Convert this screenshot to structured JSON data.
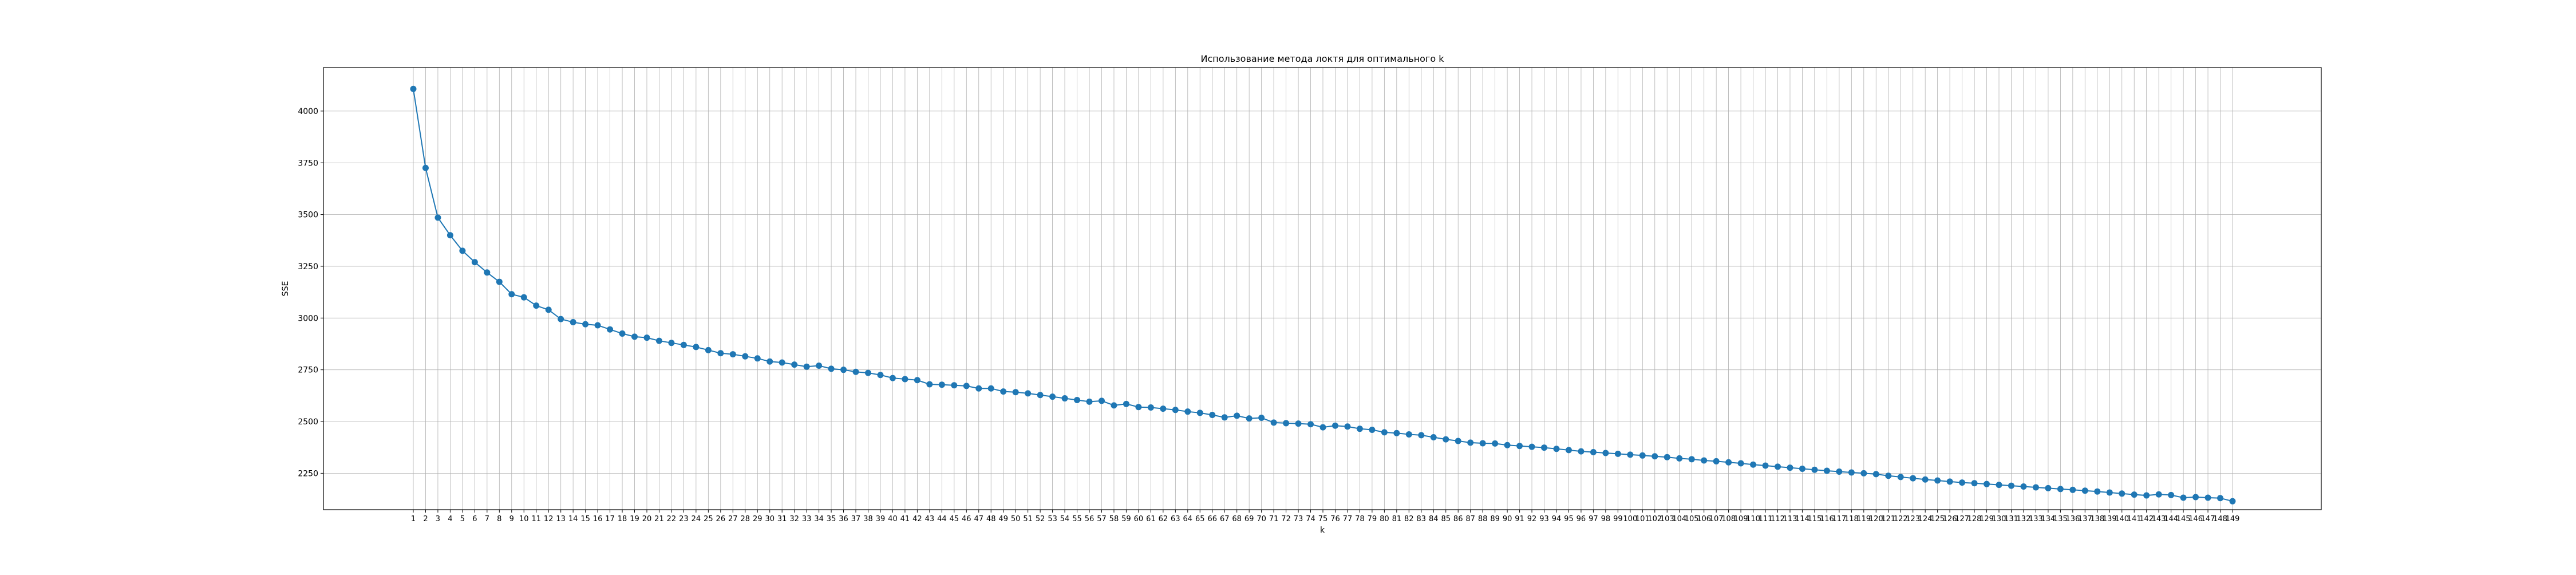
{
  "chart_data": {
    "type": "line",
    "title": "Использование метода локтя для оптимального k",
    "xlabel": "k",
    "ylabel": "SSE",
    "grid": true,
    "x_range": [
      1,
      149
    ],
    "ylim": [
      2074,
      4210
    ],
    "y_ticks": [
      2250,
      2500,
      2750,
      3000,
      3250,
      3500,
      3750,
      4000
    ],
    "series_color": "#1f77b4",
    "marker": "circle",
    "x": [
      1,
      2,
      3,
      4,
      5,
      6,
      7,
      8,
      9,
      10,
      11,
      12,
      13,
      14,
      15,
      16,
      17,
      18,
      19,
      20,
      21,
      22,
      23,
      24,
      25,
      26,
      27,
      28,
      29,
      30,
      31,
      32,
      33,
      34,
      35,
      36,
      37,
      38,
      39,
      40,
      41,
      42,
      43,
      44,
      45,
      46,
      47,
      48,
      49,
      50,
      51,
      52,
      53,
      54,
      55,
      56,
      57,
      58,
      59,
      60,
      61,
      62,
      63,
      64,
      65,
      66,
      67,
      68,
      69,
      70,
      71,
      72,
      73,
      74,
      75,
      76,
      77,
      78,
      79,
      80,
      81,
      82,
      83,
      84,
      85,
      86,
      87,
      88,
      89,
      90,
      91,
      92,
      93,
      94,
      95,
      96,
      97,
      98,
      99,
      100,
      101,
      102,
      103,
      104,
      105,
      106,
      107,
      108,
      109,
      110,
      111,
      112,
      113,
      114,
      115,
      116,
      117,
      118,
      119,
      120,
      121,
      122,
      123,
      124,
      125,
      126,
      127,
      128,
      129,
      130,
      131,
      132,
      133,
      134,
      135,
      136,
      137,
      138,
      139,
      140,
      141,
      142,
      143,
      144,
      145,
      146,
      147,
      148,
      149
    ],
    "series": [
      {
        "values": [
          4107,
          3725,
          3485,
          3400,
          3325,
          3270,
          3220,
          3175,
          3115,
          3100,
          3060,
          3040,
          2995,
          2980,
          2970,
          2965,
          2945,
          2925,
          2910,
          2905,
          2890,
          2880,
          2870,
          2860,
          2845,
          2830,
          2825,
          2815,
          2805,
          2790,
          2785,
          2775,
          2765,
          2770,
          2755,
          2750,
          2740,
          2735,
          2725,
          2710,
          2705,
          2700,
          2680,
          2678,
          2675,
          2672,
          2660,
          2660,
          2645,
          2642,
          2636,
          2628,
          2620,
          2612,
          2604,
          2596,
          2600,
          2578,
          2585,
          2570,
          2568,
          2562,
          2556,
          2548,
          2542,
          2532,
          2520,
          2528,
          2515,
          2518,
          2495,
          2492,
          2490,
          2487,
          2472,
          2480,
          2476,
          2465,
          2460,
          2448,
          2444,
          2438,
          2434,
          2424,
          2414,
          2406,
          2398,
          2395,
          2394,
          2386,
          2382,
          2378,
          2374,
          2368,
          2362,
          2356,
          2352,
          2348,
          2344,
          2340,
          2336,
          2332,
          2328,
          2322,
          2318,
          2312,
          2308,
          2303,
          2298,
          2292,
          2287,
          2282,
          2277,
          2272,
          2267,
          2262,
          2258,
          2254,
          2250,
          2246,
          2238,
          2232,
          2226,
          2220,
          2215,
          2210,
          2205,
          2202,
          2198,
          2194,
          2190,
          2186,
          2182,
          2178,
          2174,
          2170,
          2166,
          2162,
          2157,
          2152,
          2147,
          2143,
          2148,
          2145,
          2132,
          2135,
          2132,
          2130,
          2115
        ]
      }
    ]
  }
}
